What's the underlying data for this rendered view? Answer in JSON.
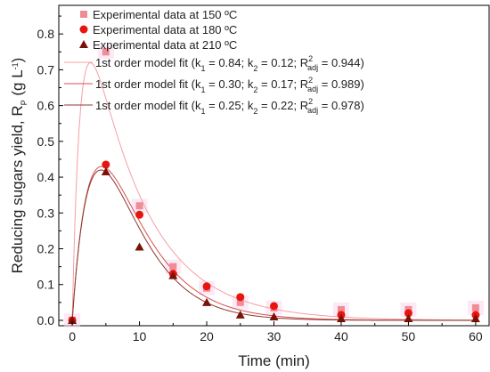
{
  "chart_data": {
    "type": "scatter",
    "xlabel": "Time (min)",
    "ylabel": "Reducing sugars yield, R",
    "ylabel_sub": "P",
    "ylabel_unit_open": " (g L",
    "ylabel_unit_sup": "-1",
    "ylabel_unit_close": ")",
    "xlim": [
      -2,
      62
    ],
    "ylim": [
      -0.015,
      0.88
    ],
    "xticks": [
      0,
      10,
      20,
      30,
      40,
      50,
      60
    ],
    "yticks": [
      0.0,
      0.1,
      0.2,
      0.3,
      0.4,
      0.5,
      0.6,
      0.7,
      0.8
    ],
    "legend_position": "top-left inside",
    "series": [
      {
        "name": "Experimental data at 150 ºC",
        "marker": "square",
        "color": "#F08C96",
        "x": [
          0,
          5,
          10,
          15,
          20,
          25,
          30,
          40,
          50,
          60
        ],
        "y": [
          0.0,
          0.75,
          0.32,
          0.15,
          0.09,
          0.05,
          0.035,
          0.03,
          0.03,
          0.035
        ]
      },
      {
        "name": "Experimental data at 180 ºC",
        "marker": "circle",
        "color": "#E8150F",
        "x": [
          0,
          5,
          10,
          15,
          20,
          25,
          30,
          40,
          50,
          60
        ],
        "y": [
          0.0,
          0.435,
          0.295,
          0.13,
          0.095,
          0.065,
          0.04,
          0.015,
          0.02,
          0.015
        ]
      },
      {
        "name": "Experimental data at 210 ºC",
        "marker": "triangle",
        "color": "#7A1208",
        "x": [
          0,
          5,
          10,
          15,
          20,
          25,
          30,
          40,
          50,
          60
        ],
        "y": [
          0.0,
          0.415,
          0.205,
          0.125,
          0.05,
          0.015,
          0.01,
          0.005,
          0.005,
          0.005
        ]
      }
    ],
    "fits": [
      {
        "label_main": "1st order model fit (k",
        "label_tail": " = 0.84; k",
        "label_tail2": " = 0.12; R",
        "label_end": " = 0.944)",
        "k1": 0.84,
        "k2": 0.12,
        "color": "#F4A0A6"
      },
      {
        "label_main": "1st order model fit (k",
        "label_tail": " = 0.30; k",
        "label_tail2": " = 0.17; R",
        "label_end": " = 0.989)",
        "k1": 0.3,
        "k2": 0.17,
        "color": "#D85050"
      },
      {
        "label_main": "1st order model fit (k",
        "label_tail": " = 0.25; k",
        "label_tail2": " = 0.22; R",
        "label_end": " = 0.978)",
        "k1": 0.25,
        "k2": 0.22,
        "color": "#8A3A30"
      }
    ],
    "label_subs": {
      "k1": "1",
      "k2": "2",
      "r2_sup": "2",
      "r2_sub": "adj"
    }
  }
}
